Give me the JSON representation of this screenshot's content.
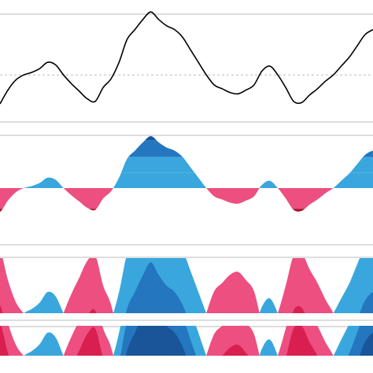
{
  "chart_data": {
    "type": "area",
    "title": "",
    "xlabel": "",
    "ylabel": "",
    "description_rows": [
      "line",
      "horizon-mirror",
      "horizon-offset-4band",
      "horizon-offset-2band"
    ],
    "x": [
      0,
      1,
      2,
      3,
      4,
      5,
      6,
      7,
      8,
      9,
      10,
      11,
      12,
      13,
      14,
      15,
      16,
      17,
      18,
      19,
      20,
      21,
      22,
      23,
      24,
      25,
      26,
      27,
      28,
      29,
      30,
      31,
      32,
      33,
      34,
      35,
      36,
      37,
      38,
      39,
      40,
      41,
      42,
      43,
      44,
      45,
      46,
      47
    ],
    "series": [
      {
        "values": [
          -2.3,
          -1.2,
          -0.4,
          0.0,
          0.2,
          0.5,
          1.0,
          0.8,
          0.0,
          -0.7,
          -1.3,
          -1.9,
          -2.1,
          -1.0,
          -0.3,
          1.0,
          2.8,
          3.6,
          4.4,
          5.0,
          4.4,
          3.9,
          3.6,
          3.0,
          2.0,
          1.0,
          0.0,
          -0.8,
          -1.1,
          -1.4,
          -1.5,
          -1.2,
          -0.8,
          0.3,
          0.7,
          0.0,
          -1.0,
          -2.1,
          -2.2,
          -1.6,
          -1.1,
          -0.5,
          0.0,
          0.7,
          1.4,
          2.3,
          3.2,
          3.6
        ]
      }
    ],
    "zero_line": 0,
    "ylim": [
      -2.8,
      5.2
    ],
    "grid": false,
    "legend": "none",
    "colors": {
      "line": "#000000",
      "positive": [
        "#a6d3ee",
        "#3aa6de",
        "#2476bf",
        "#1a5599"
      ],
      "negative": [
        "#f6a6c2",
        "#ec4f80",
        "#d81f4f",
        "#a90f2c"
      ],
      "rule": "#bbbbbb",
      "dashed": "#bbbbbb"
    },
    "band_size": 1.4
  }
}
